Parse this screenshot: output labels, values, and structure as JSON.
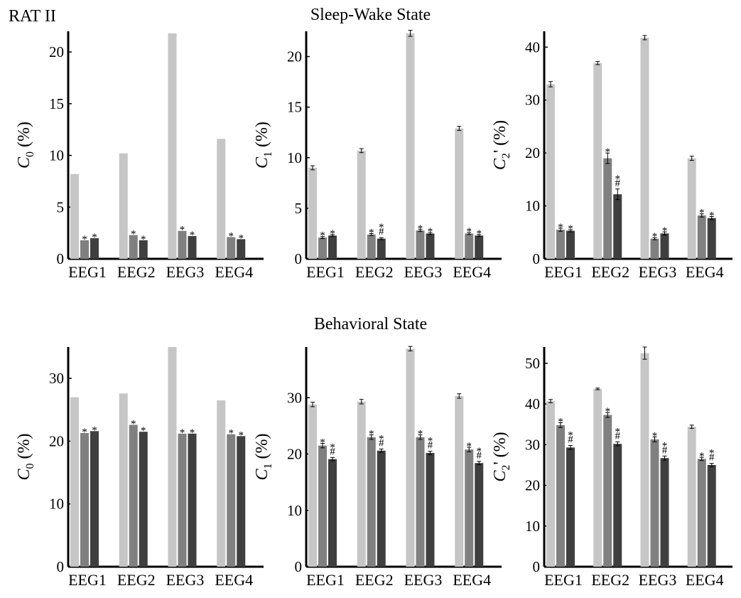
{
  "header": {
    "rat_label": "RAT II",
    "title_top": "Sleep-Wake State",
    "title_bottom": "Behavioral State"
  },
  "colors": {
    "light": "#c6c6c6",
    "mid": "#808080",
    "dark": "#3f3f3f"
  },
  "chart_data": [
    {
      "type": "bar",
      "ylabel_main": "C",
      "ylabel_sub": "0",
      "ylabel_suffix": " (%)",
      "ylim": [
        0,
        22
      ],
      "yticks": [
        0,
        5,
        10,
        15,
        20
      ],
      "categories": [
        "EEG1",
        "EEG2",
        "EEG3",
        "EEG4"
      ],
      "series": [
        {
          "values": [
            8.2,
            10.2,
            21.8,
            11.6
          ],
          "err": [
            0,
            0,
            0,
            0
          ]
        },
        {
          "values": [
            1.8,
            2.3,
            2.7,
            2.1
          ],
          "err": [
            0,
            0,
            0,
            0
          ]
        },
        {
          "values": [
            2.0,
            1.8,
            2.2,
            1.9
          ],
          "err": [
            0,
            0,
            0,
            0
          ]
        }
      ],
      "marks": [
        [
          "",
          "*",
          "*"
        ],
        [
          "",
          "*",
          "*"
        ],
        [
          "",
          "*",
          "*"
        ],
        [
          "",
          "*",
          "*"
        ]
      ]
    },
    {
      "type": "bar",
      "ylabel_main": "C",
      "ylabel_sub": "1",
      "ylabel_suffix": " (%)",
      "ylim": [
        0,
        22.5
      ],
      "yticks": [
        0,
        5,
        10,
        15,
        20
      ],
      "categories": [
        "EEG1",
        "EEG2",
        "EEG3",
        "EEG4"
      ],
      "series": [
        {
          "values": [
            9.0,
            10.7,
            22.3,
            12.9
          ],
          "err": [
            0.2,
            0.2,
            0.3,
            0.2
          ]
        },
        {
          "values": [
            2.1,
            2.4,
            2.8,
            2.5
          ],
          "err": [
            0.1,
            0.1,
            0.1,
            0.1
          ]
        },
        {
          "values": [
            2.3,
            2.0,
            2.5,
            2.3
          ],
          "err": [
            0.1,
            0.1,
            0.1,
            0.1
          ]
        }
      ],
      "marks": [
        [
          "",
          "*",
          "*"
        ],
        [
          "",
          "*",
          "*\n#"
        ],
        [
          "",
          "*",
          "*"
        ],
        [
          "",
          "*",
          "*"
        ]
      ]
    },
    {
      "type": "bar",
      "ylabel_main": "C",
      "ylabel_sub": "2",
      "ylabel_suffix": "' (%)",
      "ylim": [
        0,
        43
      ],
      "yticks": [
        0,
        10,
        20,
        30,
        40
      ],
      "categories": [
        "EEG1",
        "EEG2",
        "EEG3",
        "EEG4"
      ],
      "series": [
        {
          "values": [
            33.0,
            37.0,
            41.8,
            19.0
          ],
          "err": [
            0.5,
            0.3,
            0.4,
            0.4
          ]
        },
        {
          "values": [
            5.5,
            19.0,
            3.8,
            8.2
          ],
          "err": [
            0.3,
            1.0,
            0.2,
            0.3
          ]
        },
        {
          "values": [
            5.3,
            12.2,
            4.8,
            7.7
          ],
          "err": [
            0.2,
            1.0,
            0.3,
            0.3
          ]
        }
      ],
      "marks": [
        [
          "",
          "*",
          "*"
        ],
        [
          "",
          "*",
          "*\n#"
        ],
        [
          "",
          "*",
          "*"
        ],
        [
          "",
          "*",
          "*"
        ]
      ]
    },
    {
      "type": "bar",
      "ylabel_main": "C",
      "ylabel_sub": "0",
      "ylabel_suffix": " (%)",
      "ylim": [
        0,
        35
      ],
      "yticks": [
        0,
        10,
        20,
        30
      ],
      "categories": [
        "EEG1",
        "EEG2",
        "EEG3",
        "EEG4"
      ],
      "series": [
        {
          "values": [
            27.0,
            27.6,
            35.0,
            26.5
          ],
          "err": [
            0,
            0,
            0,
            0
          ]
        },
        {
          "values": [
            21.3,
            22.6,
            21.2,
            21.1
          ],
          "err": [
            0,
            0,
            0,
            0
          ]
        },
        {
          "values": [
            21.6,
            21.5,
            21.2,
            20.8
          ],
          "err": [
            0,
            0,
            0,
            0
          ]
        }
      ],
      "marks": [
        [
          "",
          "*",
          "*"
        ],
        [
          "",
          "*",
          "*"
        ],
        [
          "",
          "*",
          "*"
        ],
        [
          "",
          "*",
          "*"
        ]
      ]
    },
    {
      "type": "bar",
      "ylabel_main": "C",
      "ylabel_sub": "1",
      "ylabel_suffix": " (%)",
      "ylim": [
        0,
        39
      ],
      "yticks": [
        0,
        10,
        20,
        30
      ],
      "categories": [
        "EEG1",
        "EEG2",
        "EEG3",
        "EEG4"
      ],
      "series": [
        {
          "values": [
            28.8,
            29.3,
            38.7,
            30.3
          ],
          "err": [
            0.4,
            0.4,
            0.4,
            0.4
          ]
        },
        {
          "values": [
            21.5,
            23.0,
            23.0,
            20.8
          ],
          "err": [
            0.4,
            0.4,
            0.4,
            0.4
          ]
        },
        {
          "values": [
            19.1,
            20.6,
            20.2,
            18.4
          ],
          "err": [
            0.3,
            0.3,
            0.3,
            0.3
          ]
        }
      ],
      "marks": [
        [
          "",
          "*",
          "*\n#"
        ],
        [
          "",
          "*",
          "*\n#"
        ],
        [
          "",
          "*",
          "*\n#"
        ],
        [
          "",
          "*",
          "*\n#"
        ]
      ]
    },
    {
      "type": "bar",
      "ylabel_main": "C",
      "ylabel_sub": "2",
      "ylabel_suffix": "' (%)",
      "ylim": [
        0,
        54
      ],
      "yticks": [
        0,
        10,
        20,
        30,
        40,
        50
      ],
      "categories": [
        "EEG1",
        "EEG2",
        "EEG3",
        "EEG4"
      ],
      "series": [
        {
          "values": [
            40.7,
            43.7,
            52.5,
            34.4
          ],
          "err": [
            0.4,
            0.2,
            1.5,
            0.4
          ]
        },
        {
          "values": [
            34.8,
            37.3,
            31.3,
            26.5
          ],
          "err": [
            0.6,
            0.6,
            0.6,
            0.4
          ]
        },
        {
          "values": [
            29.3,
            30.2,
            26.7,
            25.0
          ],
          "err": [
            0.5,
            0.5,
            0.5,
            0.4
          ]
        }
      ],
      "marks": [
        [
          "",
          "*",
          "*\n#"
        ],
        [
          "",
          "*",
          "*\n#"
        ],
        [
          "",
          "*",
          "*\n#"
        ],
        [
          "",
          "*",
          "*\n#"
        ]
      ]
    }
  ]
}
